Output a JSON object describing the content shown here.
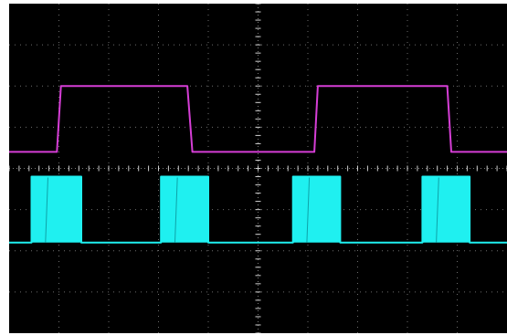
{
  "chart_data": {
    "type": "line",
    "title": "",
    "xlabel": "",
    "ylabel": "",
    "grid": true,
    "grid_divisions": {
      "x": 10,
      "y": 8
    },
    "xlim": [
      0,
      10
    ],
    "ylim": [
      -4,
      4
    ],
    "colors": {
      "background": "#000000",
      "grid": "#7a7a7a",
      "ch1": "#d63ed6",
      "ch2": "#1ff0f0"
    },
    "series": [
      {
        "channel": 1,
        "color": "#d63ed6",
        "low": 0.4,
        "high": 2.0,
        "edges": [
          [
            0.0,
            "L"
          ],
          [
            0.96,
            "L"
          ],
          [
            1.04,
            "H"
          ],
          [
            3.58,
            "H"
          ],
          [
            3.68,
            "L"
          ],
          [
            6.13,
            "L"
          ],
          [
            6.2,
            "H"
          ],
          [
            8.8,
            "H"
          ],
          [
            8.88,
            "L"
          ],
          [
            10.0,
            "L"
          ]
        ]
      },
      {
        "channel": 2,
        "color": "#1ff0f0",
        "low": -1.8,
        "high": -0.2,
        "edges": [
          [
            0.0,
            "L"
          ],
          [
            0.45,
            "L"
          ],
          [
            0.45,
            "H"
          ],
          [
            1.45,
            "H"
          ],
          [
            1.45,
            "L"
          ],
          [
            3.05,
            "L"
          ],
          [
            3.05,
            "H"
          ],
          [
            4.0,
            "H"
          ],
          [
            4.0,
            "L"
          ],
          [
            5.7,
            "L"
          ],
          [
            5.7,
            "H"
          ],
          [
            6.65,
            "H"
          ],
          [
            6.65,
            "L"
          ],
          [
            8.3,
            "L"
          ],
          [
            8.3,
            "H"
          ],
          [
            9.25,
            "H"
          ],
          [
            9.25,
            "L"
          ],
          [
            10.0,
            "L"
          ]
        ],
        "filled_bursts": [
          [
            0.45,
            1.45
          ],
          [
            3.05,
            4.0
          ],
          [
            5.7,
            6.65
          ],
          [
            8.3,
            9.25
          ]
        ]
      }
    ]
  }
}
